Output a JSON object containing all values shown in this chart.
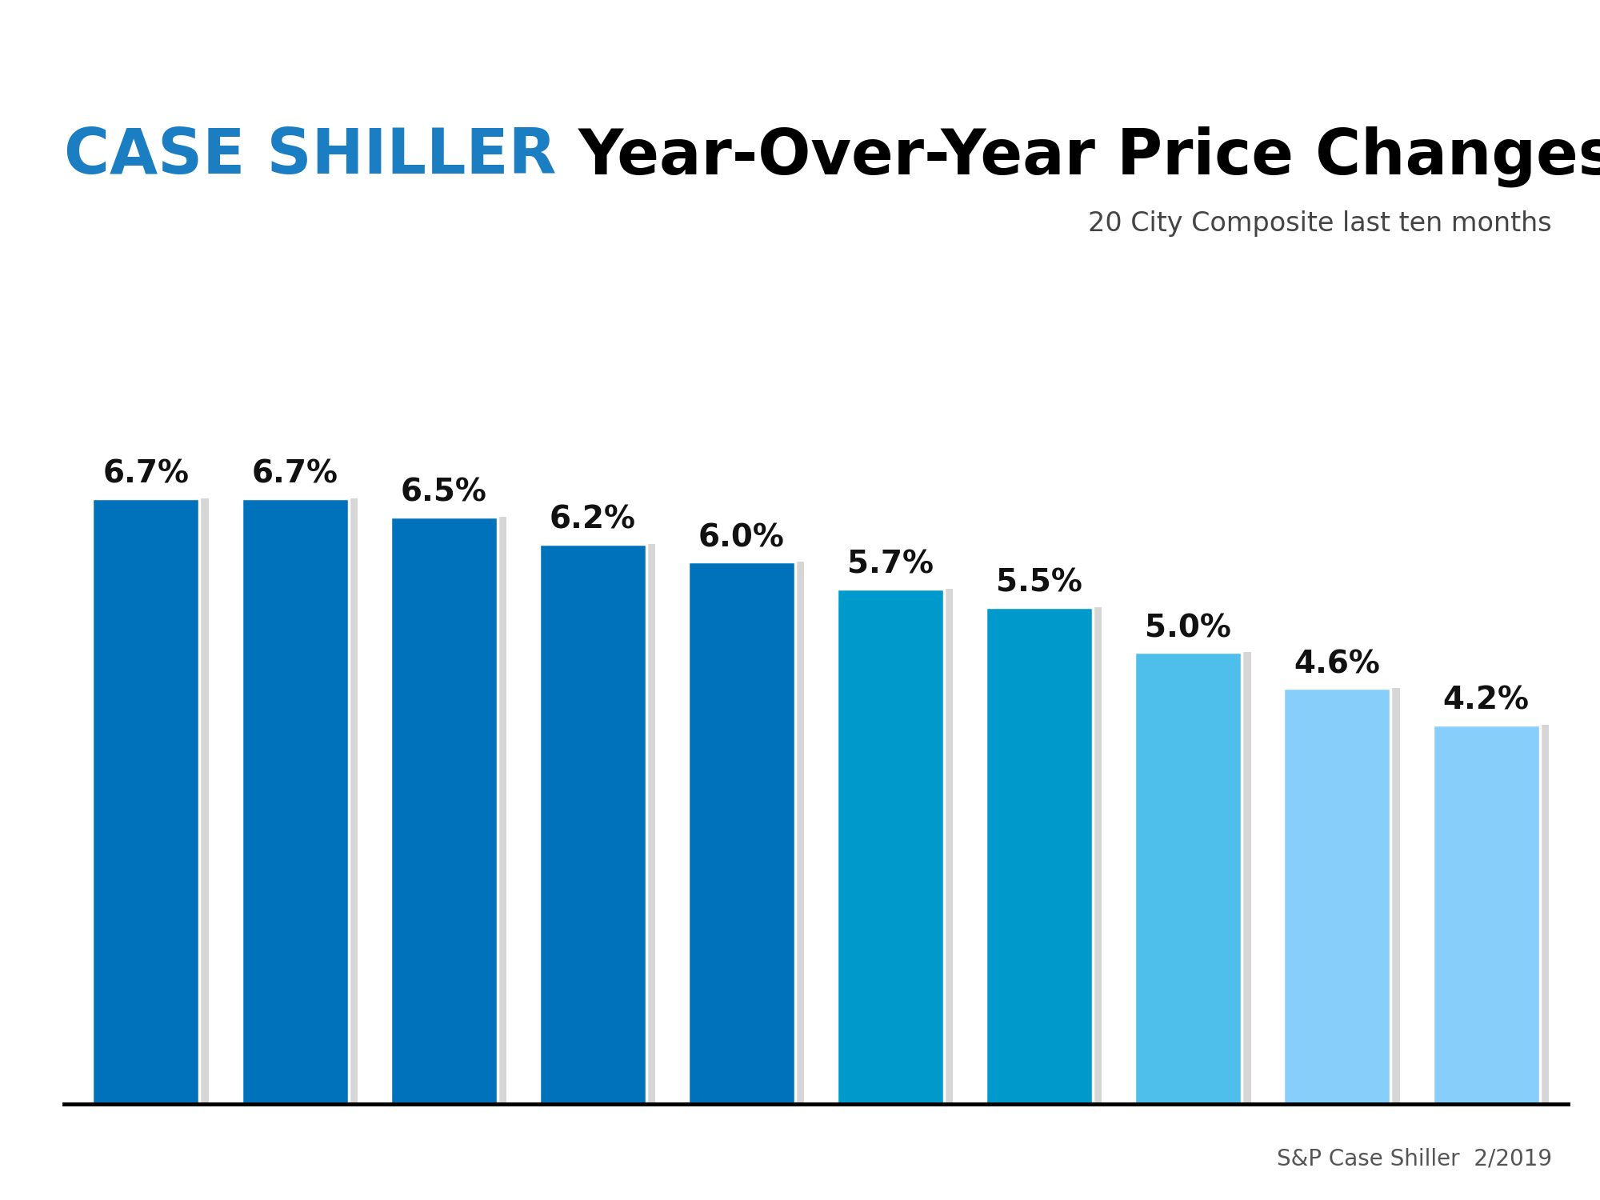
{
  "values": [
    6.7,
    6.7,
    6.5,
    6.2,
    6.0,
    5.7,
    5.5,
    5.0,
    4.6,
    4.2
  ],
  "labels": [
    "6.7%",
    "6.7%",
    "6.5%",
    "6.2%",
    "6.0%",
    "5.7%",
    "5.5%",
    "5.0%",
    "4.6%",
    "4.2%"
  ],
  "bar_colors": [
    "#0072BC",
    "#0072BC",
    "#0072BC",
    "#0072BC",
    "#0072BC",
    "#0099CC",
    "#0099CC",
    "#4DBFEA",
    "#87CEFA",
    "#87CEFA"
  ],
  "title_blue": "CASE SHILLER ",
  "title_black": "Year-Over-Year Price Changes",
  "subtitle": "20 City Composite last ten months",
  "source": "S&P Case Shiller  2/2019",
  "title_blue_color": "#1B7EC2",
  "title_black_color": "#000000",
  "subtitle_color": "#444444",
  "source_color": "#555555",
  "background_color": "#FFFFFF",
  "bar_edge_color": "#FFFFFF",
  "axis_line_color": "#000000",
  "label_fontsize": 28,
  "title_fontsize": 56,
  "subtitle_fontsize": 24,
  "source_fontsize": 20,
  "ylim": [
    0,
    8.5
  ]
}
